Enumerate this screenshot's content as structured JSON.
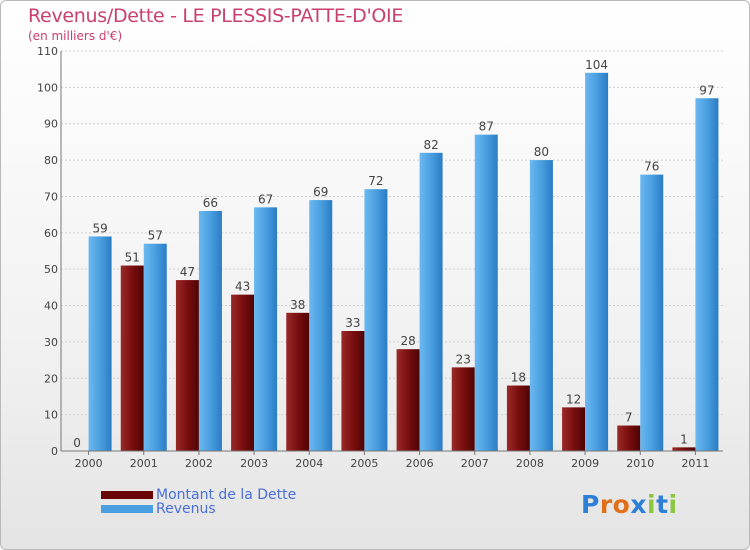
{
  "title": "Revenus/Dette - LE PLESSIS-PATTE-D'OIE",
  "subtitle": "(en milliers d'€)",
  "colors": {
    "debt": "#7a0e0e",
    "revenue": "#4a9fe0",
    "title": "#c94070",
    "legend_text": "#4a6fd8"
  },
  "chart_data": {
    "type": "bar",
    "categories": [
      "2000",
      "2001",
      "2002",
      "2003",
      "2004",
      "2005",
      "2006",
      "2007",
      "2008",
      "2009",
      "2010",
      "2011"
    ],
    "series": [
      {
        "name": "Montant de la Dette",
        "values": [
          0,
          51,
          47,
          43,
          38,
          33,
          28,
          23,
          18,
          12,
          7,
          1
        ]
      },
      {
        "name": "Revenus",
        "values": [
          59,
          57,
          66,
          67,
          69,
          72,
          82,
          87,
          80,
          104,
          76,
          97
        ]
      }
    ],
    "ylim": [
      0,
      110
    ],
    "yticks": [
      0,
      10,
      20,
      30,
      40,
      50,
      60,
      70,
      80,
      90,
      100,
      110
    ],
    "grid": true,
    "legend_position": "bottom-left"
  },
  "legend": {
    "debt_label": "Montant de la Dette",
    "revenue_label": "Revenus"
  },
  "logo": {
    "text": "Proxiti"
  }
}
